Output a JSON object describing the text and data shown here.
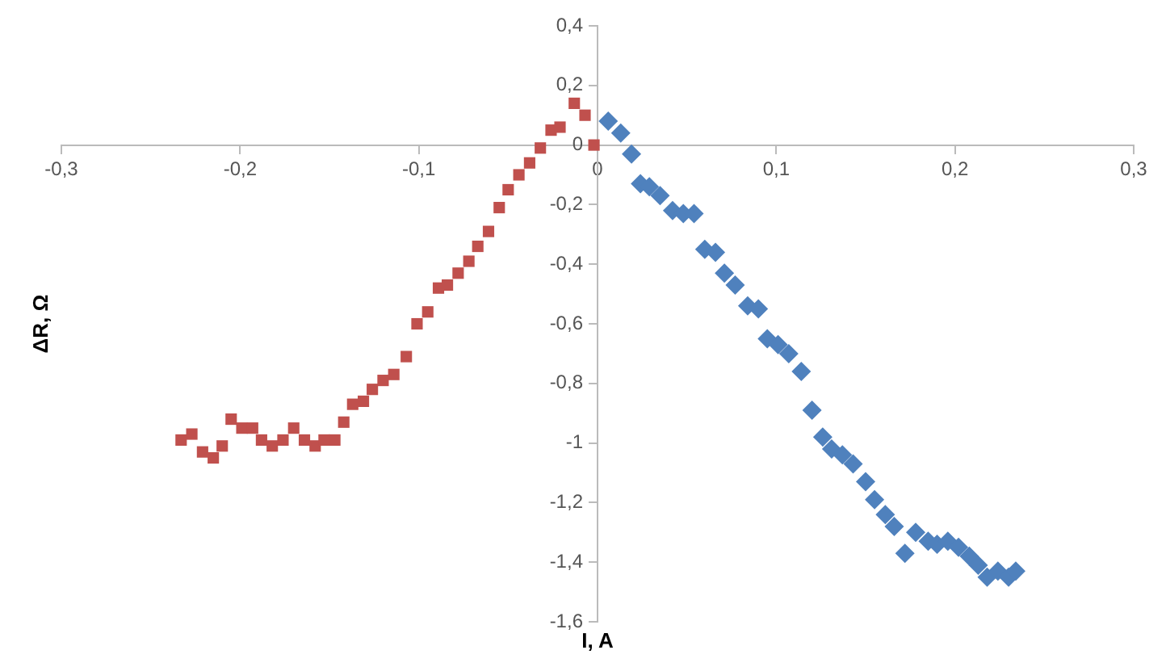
{
  "chart_data": {
    "type": "scatter",
    "xlabel": "I, A",
    "ylabel": "ΔR, Ω",
    "grid": false,
    "legend": false,
    "xlim": [
      -0.3,
      0.3
    ],
    "ylim": [
      -1.6,
      0.4
    ],
    "xticks": [
      {
        "value": -0.3,
        "label": "-0,3"
      },
      {
        "value": -0.2,
        "label": "-0,2"
      },
      {
        "value": -0.1,
        "label": "-0,1"
      },
      0,
      {
        "value": 0.1,
        "label": "0,1"
      },
      {
        "value": 0.2,
        "label": "0,2"
      },
      {
        "value": 0.3,
        "label": "0,3"
      }
    ],
    "yticks": [
      {
        "value": -1.6,
        "label": "-1,6"
      },
      {
        "value": -1.4,
        "label": "-1,4"
      },
      {
        "value": -1.2,
        "label": "-1,2"
      },
      {
        "value": -1.0,
        "label": "-1"
      },
      {
        "value": -0.8,
        "label": "-0,8"
      },
      {
        "value": -0.6,
        "label": "-0,6"
      },
      {
        "value": -0.4,
        "label": "-0,4"
      },
      {
        "value": -0.2,
        "label": "-0,2"
      },
      0,
      {
        "value": 0.2,
        "label": "0,2"
      },
      {
        "value": 0.4,
        "label": "0,4"
      }
    ],
    "series": [
      {
        "color": "#c0504d",
        "marker": "square",
        "x": [
          -0.233,
          -0.227,
          -0.221,
          -0.215,
          -0.21,
          -0.205,
          -0.199,
          -0.193,
          -0.188,
          -0.182,
          -0.176,
          -0.17,
          -0.164,
          -0.158,
          -0.153,
          -0.147,
          -0.142,
          -0.137,
          -0.131,
          -0.126,
          -0.12,
          -0.114,
          -0.107,
          -0.101,
          -0.095,
          -0.089,
          -0.084,
          -0.078,
          -0.072,
          -0.067,
          -0.061,
          -0.055,
          -0.05,
          -0.044,
          -0.038,
          -0.032,
          -0.026,
          -0.021,
          -0.013,
          -0.007,
          -0.002
        ],
        "values": [
          -0.99,
          -0.97,
          -1.03,
          -1.05,
          -1.01,
          -0.92,
          -0.95,
          -0.95,
          -0.99,
          -1.01,
          -0.99,
          -0.95,
          -0.99,
          -1.01,
          -0.99,
          -0.99,
          -0.93,
          -0.87,
          -0.86,
          -0.82,
          -0.79,
          -0.77,
          -0.71,
          -0.6,
          -0.56,
          -0.48,
          -0.47,
          -0.43,
          -0.39,
          -0.34,
          -0.29,
          -0.21,
          -0.15,
          -0.1,
          -0.06,
          -0.01,
          0.05,
          0.06,
          0.14,
          0.1,
          0.0
        ]
      },
      {
        "color": "#4f81bd",
        "marker": "diamond",
        "x": [
          0.006,
          0.013,
          0.019,
          0.024,
          0.029,
          0.035,
          0.042,
          0.048,
          0.054,
          0.06,
          0.066,
          0.071,
          0.077,
          0.084,
          0.09,
          0.095,
          0.101,
          0.107,
          0.114,
          0.12,
          0.126,
          0.131,
          0.137,
          0.143,
          0.15,
          0.155,
          0.161,
          0.166,
          0.172,
          0.178,
          0.185,
          0.19,
          0.196,
          0.202,
          0.208,
          0.213,
          0.218,
          0.224,
          0.23,
          0.234
        ],
        "values": [
          0.08,
          0.04,
          -0.03,
          -0.13,
          -0.14,
          -0.17,
          -0.22,
          -0.23,
          -0.23,
          -0.35,
          -0.36,
          -0.43,
          -0.47,
          -0.54,
          -0.55,
          -0.65,
          -0.67,
          -0.7,
          -0.76,
          -0.89,
          -0.98,
          -1.02,
          -1.04,
          -1.07,
          -1.13,
          -1.19,
          -1.24,
          -1.28,
          -1.37,
          -1.3,
          -1.33,
          -1.34,
          -1.33,
          -1.35,
          -1.38,
          -1.41,
          -1.45,
          -1.43,
          -1.45,
          -1.43
        ]
      }
    ]
  }
}
